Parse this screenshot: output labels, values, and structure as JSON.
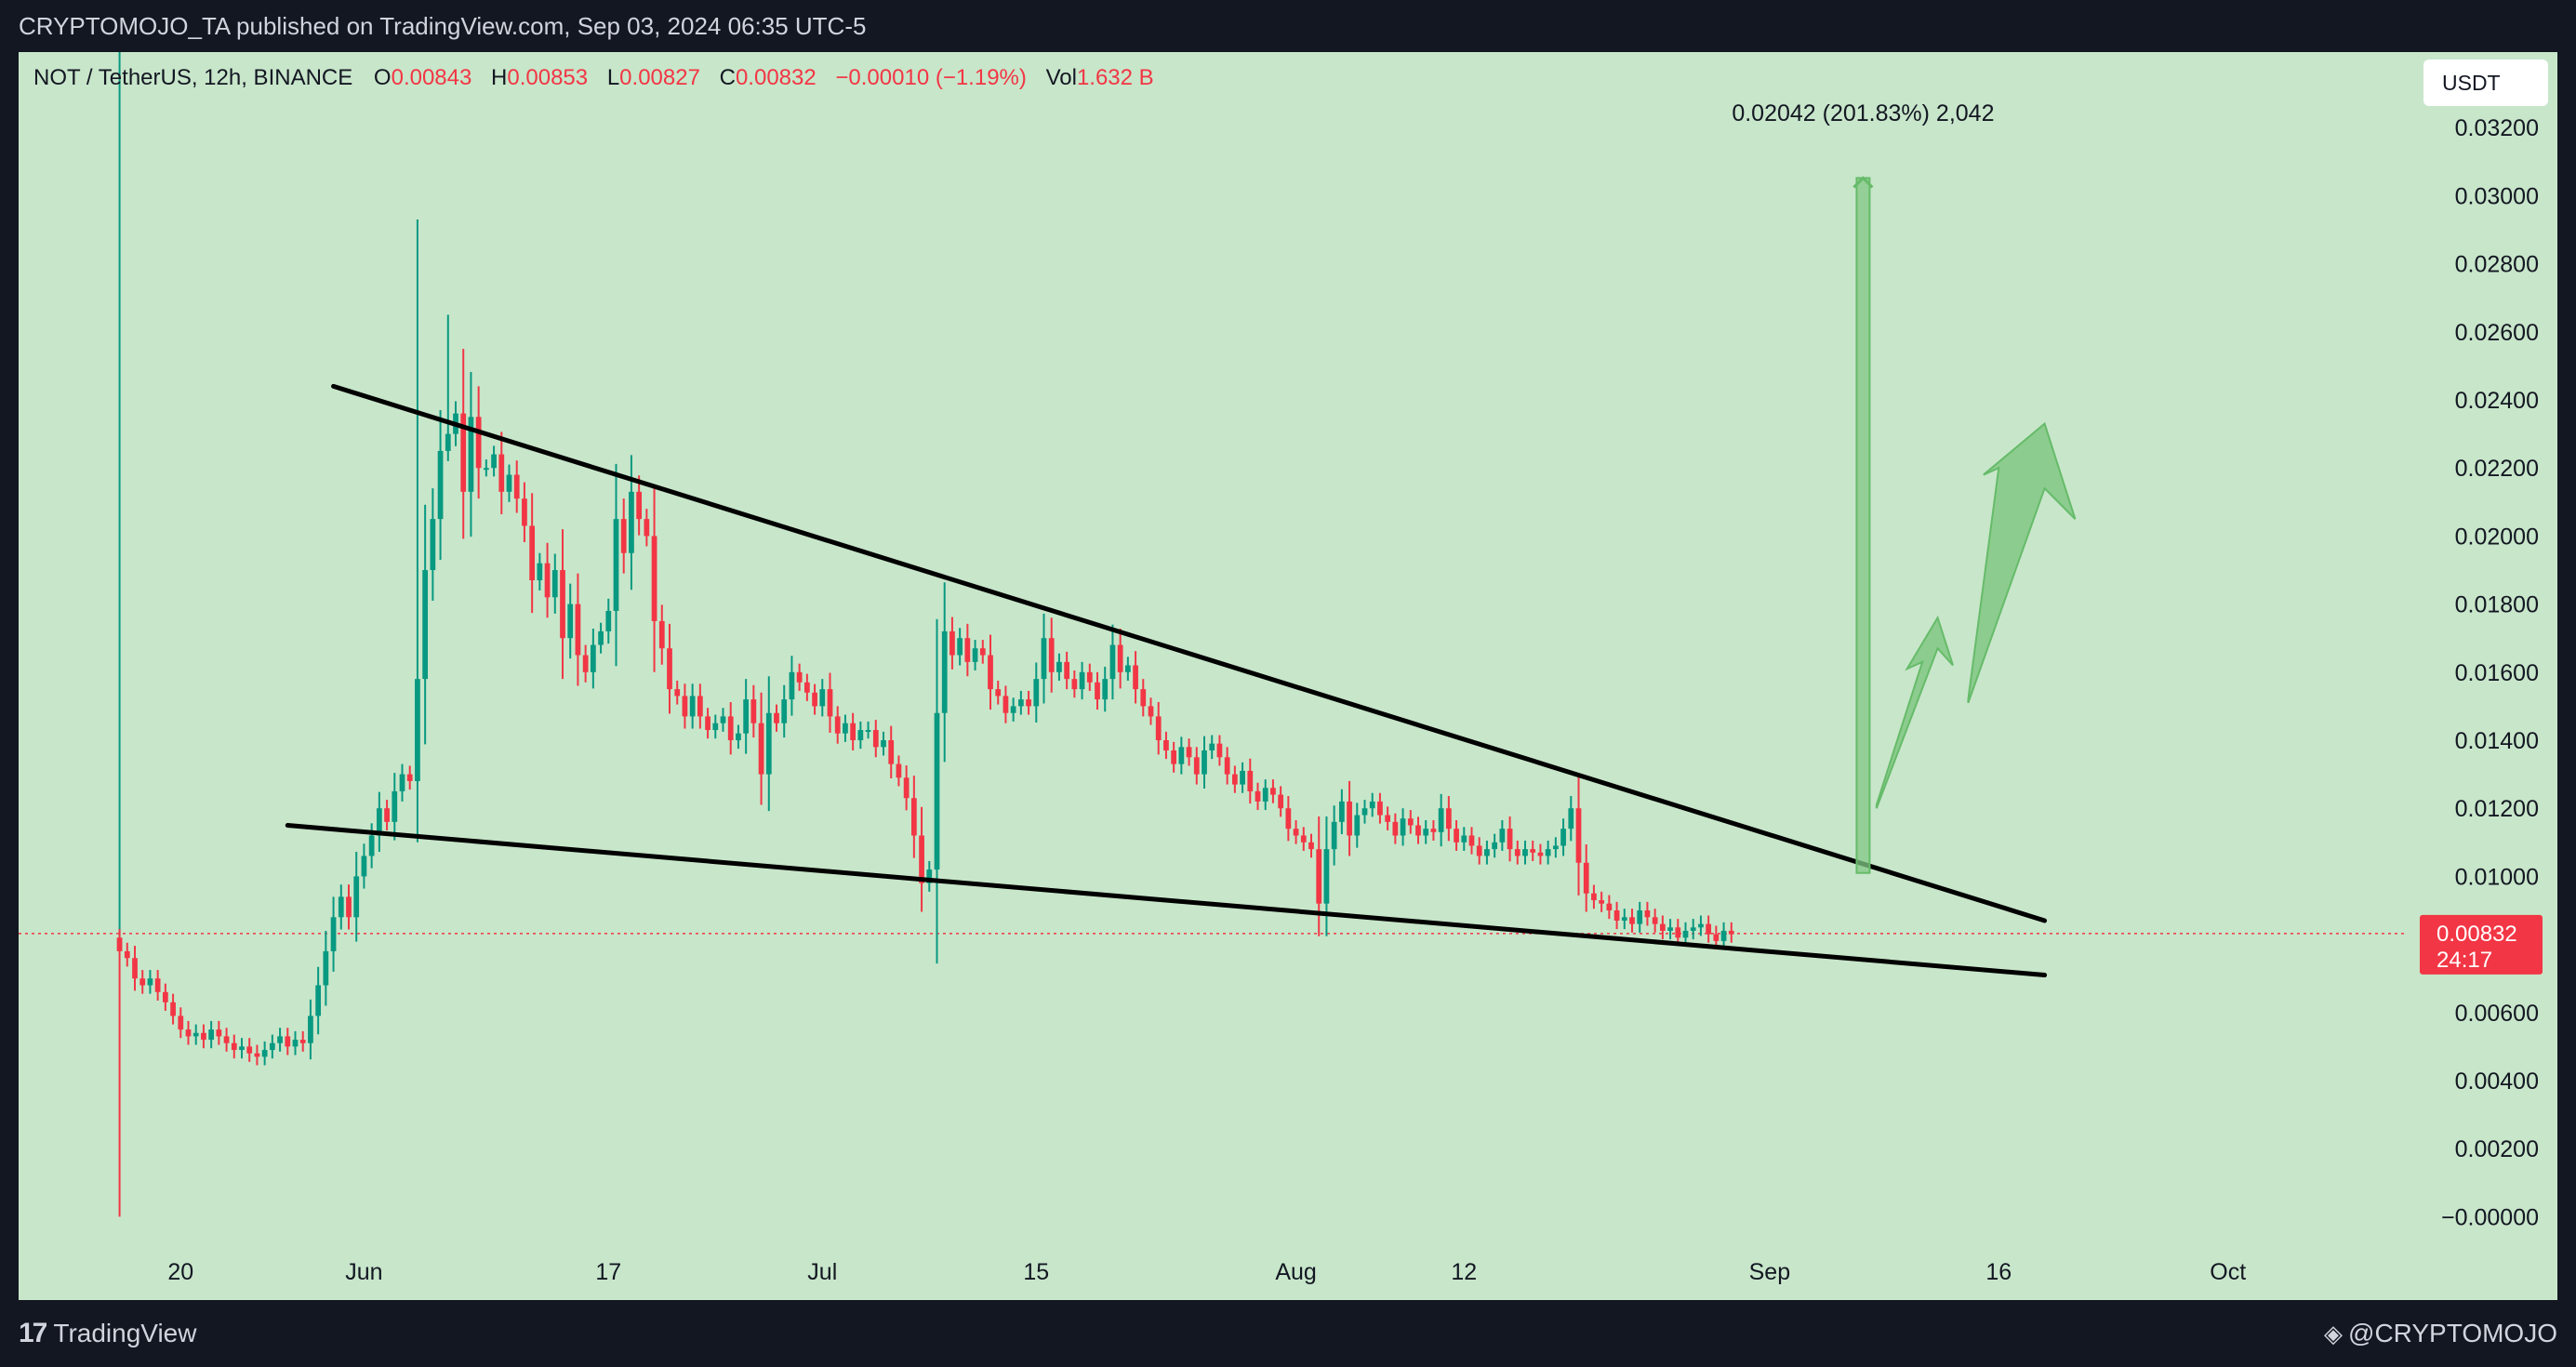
{
  "header": {
    "publisher_line": "CRYPTOMOJO_TA published on TradingView.com, Sep 03, 2024 06:35 UTC-5"
  },
  "legend": {
    "symbol": "NOT / TetherUS, 12h, BINANCE",
    "open_label": "O",
    "open": "0.00843",
    "high_label": "H",
    "high": "0.00853",
    "low_label": "L",
    "low": "0.00827",
    "close_label": "C",
    "close": "0.00832",
    "change": "−0.00010 (−1.19%)",
    "vol_label": "Vol",
    "vol": "1.632 B"
  },
  "currency_button": "USDT",
  "footer": {
    "brand": "TradingView",
    "author": "@CRYPTOMOJO"
  },
  "colors": {
    "background": "#c8e6ca",
    "up": "#089981",
    "down": "#f23645",
    "trendline": "#000000",
    "arrow": "#66bb6a"
  },
  "chart_data": {
    "type": "candlestick",
    "y_axis_ticks": [
      "0.03200",
      "0.03000",
      "0.02800",
      "0.02600",
      "0.02400",
      "0.02200",
      "0.02000",
      "0.01800",
      "0.01600",
      "0.01400",
      "0.01200",
      "0.01000",
      "0.00600",
      "0.00400",
      "0.00200",
      "−0.00000"
    ],
    "ylim": [
      -0.0007,
      0.0334
    ],
    "x_axis_ticks": [
      "20",
      "Jun",
      "17",
      "Jul",
      "15",
      "Aug",
      "12",
      "Sep",
      "16",
      "Oct"
    ],
    "x_tick_dates": [
      "2024-05-20",
      "2024-06-01",
      "2024-06-17",
      "2024-07-01",
      "2024-07-15",
      "2024-08-01",
      "2024-08-12",
      "2024-09-01",
      "2024-09-16",
      "2024-10-01"
    ],
    "xlim": [
      "2024-05-10",
      "2024-10-11"
    ],
    "first_candle_time": "2024-05-16",
    "candle_interval_hours": 12,
    "current_price": "0.00832",
    "countdown": "24:17",
    "closes": [
      0.0078,
      0.0076,
      0.007,
      0.0068,
      0.007,
      0.0066,
      0.0063,
      0.0059,
      0.0055,
      0.0053,
      0.0054,
      0.0052,
      0.0055,
      0.0053,
      0.0051,
      0.0049,
      0.005,
      0.0048,
      0.0047,
      0.0049,
      0.0051,
      0.0053,
      0.005,
      0.0052,
      0.0051,
      0.0059,
      0.0068,
      0.0078,
      0.0088,
      0.0094,
      0.0088,
      0.01,
      0.0106,
      0.0112,
      0.012,
      0.0116,
      0.0125,
      0.013,
      0.0128,
      0.0158,
      0.019,
      0.0205,
      0.0225,
      0.023,
      0.0236,
      0.0213,
      0.0235,
      0.022,
      0.022,
      0.0224,
      0.0213,
      0.0218,
      0.0211,
      0.0203,
      0.0187,
      0.0192,
      0.0182,
      0.019,
      0.017,
      0.018,
      0.0165,
      0.016,
      0.0168,
      0.0172,
      0.0178,
      0.0205,
      0.0195,
      0.0213,
      0.0205,
      0.02,
      0.0175,
      0.0167,
      0.0155,
      0.0153,
      0.0147,
      0.0153,
      0.0147,
      0.0143,
      0.0145,
      0.0147,
      0.014,
      0.0142,
      0.0152,
      0.0145,
      0.013,
      0.0148,
      0.0145,
      0.0152,
      0.016,
      0.0157,
      0.0154,
      0.015,
      0.0155,
      0.0147,
      0.0142,
      0.0145,
      0.014,
      0.0143,
      0.0143,
      0.0138,
      0.014,
      0.0133,
      0.0129,
      0.0123,
      0.0112,
      0.0098,
      0.0102,
      0.0148,
      0.0172,
      0.0165,
      0.017,
      0.0163,
      0.0167,
      0.0165,
      0.0155,
      0.0153,
      0.0148,
      0.015,
      0.0152,
      0.015,
      0.0158,
      0.017,
      0.016,
      0.0163,
      0.0158,
      0.0155,
      0.016,
      0.0157,
      0.0152,
      0.0158,
      0.0168,
      0.016,
      0.0162,
      0.0155,
      0.015,
      0.0147,
      0.014,
      0.0137,
      0.0133,
      0.0138,
      0.0135,
      0.013,
      0.0137,
      0.0139,
      0.0135,
      0.013,
      0.0127,
      0.0131,
      0.0125,
      0.0122,
      0.0126,
      0.0124,
      0.012,
      0.0114,
      0.0112,
      0.011,
      0.0108,
      0.0092,
      0.0108,
      0.0116,
      0.0122,
      0.0112,
      0.0118,
      0.012,
      0.0122,
      0.0118,
      0.0116,
      0.0112,
      0.0117,
      0.0115,
      0.0112,
      0.0114,
      0.0113,
      0.012,
      0.0114,
      0.011,
      0.0112,
      0.0109,
      0.0106,
      0.0108,
      0.011,
      0.0114,
      0.0108,
      0.0106,
      0.0108,
      0.0107,
      0.0106,
      0.0108,
      0.0109,
      0.0114,
      0.012,
      0.0104,
      0.0095,
      0.0093,
      0.0092,
      0.009,
      0.0087,
      0.0088,
      0.0086,
      0.009,
      0.0088,
      0.0086,
      0.0084,
      0.0085,
      0.0082,
      0.0084,
      0.0085,
      0.0086,
      0.0083,
      0.0081,
      0.0084,
      0.0083
    ]
  },
  "drawings": {
    "measure_label": "0.02042 (201.83%) 2,042"
  }
}
